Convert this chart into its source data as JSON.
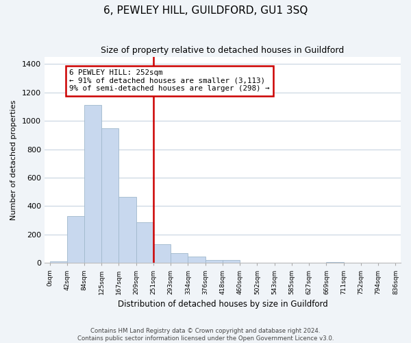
{
  "title": "6, PEWLEY HILL, GUILDFORD, GU1 3SQ",
  "subtitle": "Size of property relative to detached houses in Guildford",
  "xlabel": "Distribution of detached houses by size in Guildford",
  "ylabel": "Number of detached properties",
  "bar_color": "#c8d8ee",
  "bar_edge_color": "#a0b8cc",
  "bin_labels": [
    "0sqm",
    "42sqm",
    "84sqm",
    "125sqm",
    "167sqm",
    "209sqm",
    "251sqm",
    "293sqm",
    "334sqm",
    "376sqm",
    "418sqm",
    "460sqm",
    "502sqm",
    "543sqm",
    "585sqm",
    "627sqm",
    "669sqm",
    "711sqm",
    "752sqm",
    "794sqm",
    "836sqm"
  ],
  "bar_heights": [
    10,
    330,
    1110,
    950,
    465,
    285,
    130,
    70,
    45,
    20,
    20,
    0,
    0,
    0,
    0,
    0,
    5,
    0,
    0,
    0,
    0
  ],
  "ylim": [
    0,
    1450
  ],
  "yticks": [
    0,
    200,
    400,
    600,
    800,
    1000,
    1200,
    1400
  ],
  "vline_index": 6,
  "vline_color": "#cc0000",
  "annotation_box_text": "6 PEWLEY HILL: 252sqm\n← 91% of detached houses are smaller (3,113)\n9% of semi-detached houses are larger (298) →",
  "footer_text": "Contains HM Land Registry data © Crown copyright and database right 2024.\nContains public sector information licensed under the Open Government Licence v3.0.",
  "background_color": "#f0f4f8",
  "plot_background_color": "#ffffff",
  "grid_color": "#c8d4e0"
}
